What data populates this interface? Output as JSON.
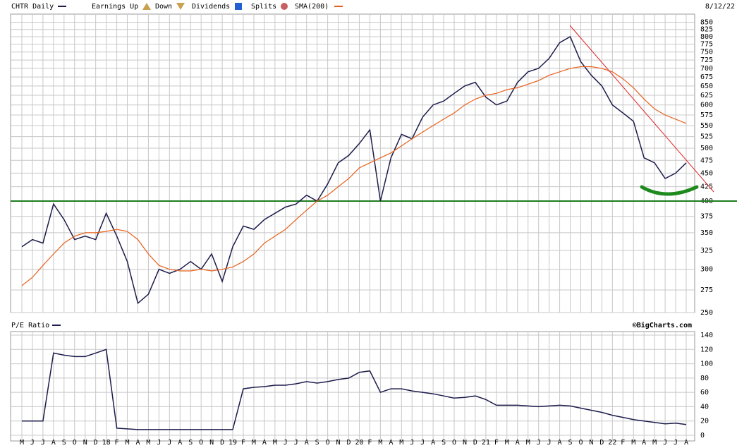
{
  "chart_data": [
    {
      "type": "line",
      "title": "CHTR Daily",
      "date": "8/12/22",
      "legend": [
        "Earnings Up",
        "Down",
        "Dividends",
        "Splits",
        "SMA(200)"
      ],
      "log": true,
      "grid": true,
      "support": 400,
      "support_color": "#1e7d1e",
      "ylim": [
        250,
        880
      ],
      "yticks": [
        250,
        275,
        300,
        325,
        350,
        375,
        400,
        425,
        450,
        475,
        500,
        525,
        550,
        575,
        600,
        625,
        650,
        675,
        700,
        725,
        750,
        775,
        800,
        825,
        850
      ],
      "series": [
        {
          "name": "CHTR Daily",
          "color": "#1c1c4c",
          "values": [
            330,
            340,
            335,
            395,
            370,
            340,
            345,
            340,
            380,
            345,
            310,
            260,
            270,
            300,
            295,
            300,
            310,
            300,
            320,
            285,
            330,
            360,
            355,
            370,
            380,
            390,
            395,
            410,
            400,
            430,
            470,
            485,
            510,
            540,
            400,
            480,
            530,
            520,
            570,
            600,
            610,
            630,
            650,
            660,
            620,
            600,
            610,
            660,
            690,
            700,
            730,
            780,
            800,
            720,
            680,
            650,
            600,
            580,
            560,
            480,
            470,
            440,
            450,
            470
          ]
        },
        {
          "name": "SMA(200)",
          "color": "#e8601c",
          "values": [
            280,
            290,
            305,
            320,
            335,
            345,
            350,
            350,
            352,
            355,
            352,
            340,
            320,
            305,
            300,
            298,
            298,
            300,
            298,
            300,
            303,
            310,
            320,
            335,
            345,
            355,
            370,
            385,
            400,
            410,
            425,
            440,
            460,
            470,
            480,
            490,
            505,
            520,
            535,
            550,
            565,
            580,
            600,
            615,
            625,
            630,
            640,
            645,
            655,
            665,
            680,
            690,
            700,
            705,
            705,
            700,
            690,
            670,
            645,
            615,
            590,
            575,
            565,
            555
          ]
        }
      ]
    },
    {
      "type": "line",
      "title": "P/E Ratio",
      "source": "©BigCharts.com",
      "grid": true,
      "categories": [
        "M",
        "J",
        "J",
        "A",
        "S",
        "O",
        "N",
        "D",
        "18",
        "F",
        "M",
        "A",
        "M",
        "J",
        "J",
        "A",
        "S",
        "O",
        "N",
        "D",
        "19",
        "F",
        "M",
        "A",
        "M",
        "J",
        "J",
        "A",
        "S",
        "O",
        "N",
        "D",
        "20",
        "F",
        "M",
        "A",
        "M",
        "J",
        "J",
        "A",
        "S",
        "O",
        "N",
        "D",
        "21",
        "F",
        "M",
        "A",
        "M",
        "J",
        "J",
        "A",
        "S",
        "O",
        "N",
        "D",
        "22",
        "F",
        "M",
        "A",
        "M",
        "J",
        "J",
        "A"
      ],
      "ylim": [
        0,
        140
      ],
      "yticks": [
        0,
        20,
        40,
        60,
        80,
        100,
        120,
        140
      ],
      "series": [
        {
          "name": "P/E Ratio",
          "color": "#1c1c4c",
          "values": [
            20,
            20,
            20,
            115,
            112,
            110,
            110,
            115,
            120,
            10,
            9,
            8,
            8,
            8,
            8,
            8,
            8,
            8,
            8,
            8,
            8,
            65,
            67,
            68,
            70,
            70,
            72,
            75,
            73,
            75,
            78,
            80,
            88,
            90,
            60,
            65,
            65,
            62,
            60,
            58,
            55,
            52,
            53,
            55,
            50,
            42,
            42,
            42,
            41,
            40,
            41,
            42,
            41,
            38,
            35,
            32,
            28,
            25,
            22,
            20,
            18,
            16,
            17,
            15
          ]
        }
      ]
    }
  ]
}
